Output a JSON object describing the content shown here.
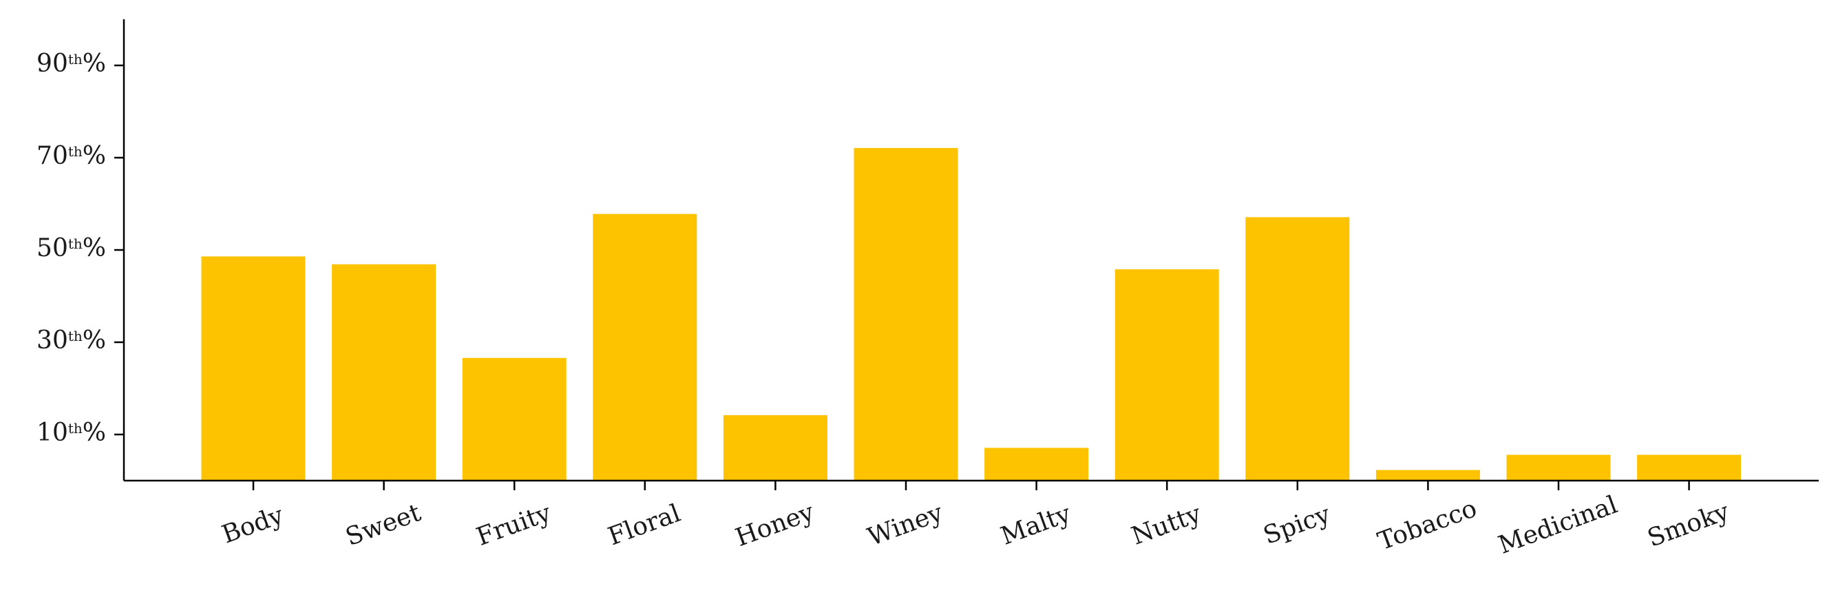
{
  "chart_data": {
    "type": "bar",
    "title": "",
    "xlabel": "",
    "ylabel": "",
    "categories": [
      "Body",
      "Sweet",
      "Fruity",
      "Floral",
      "Honey",
      "Winey",
      "Malty",
      "Nutty",
      "Spicy",
      "Tobacco",
      "Medicinal",
      "Smoky"
    ],
    "values": [
      48.6,
      46.9,
      26.6,
      57.8,
      14.2,
      72.1,
      7.1,
      45.8,
      57.1,
      2.3,
      5.6,
      5.6
    ],
    "ylim": [
      0,
      100
    ],
    "yticks": [
      {
        "value": 10,
        "num": "10",
        "sup": "th",
        "pct": "%"
      },
      {
        "value": 30,
        "num": "30",
        "sup": "th",
        "pct": "%"
      },
      {
        "value": 50,
        "num": "50",
        "sup": "th",
        "pct": "%"
      },
      {
        "value": 70,
        "num": "70",
        "sup": "th",
        "pct": "%"
      },
      {
        "value": 90,
        "num": "90",
        "sup": "th",
        "pct": "%"
      }
    ],
    "bar_color": "#FDC300",
    "grid": false,
    "legend": "none"
  }
}
